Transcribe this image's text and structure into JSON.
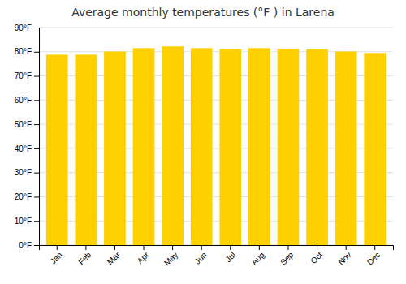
{
  "chart_data": {
    "type": "bar",
    "title": "Average monthly temperatures (°F ) in Larena",
    "categories": [
      "Jan",
      "Feb",
      "Mar",
      "Apr",
      "May",
      "Jun",
      "Jul",
      "Aug",
      "Sep",
      "Oct",
      "Nov",
      "Dec"
    ],
    "values": [
      78.8,
      78.8,
      80.1,
      81.5,
      82.2,
      81.5,
      81.1,
      81.5,
      81.3,
      81.0,
      80.1,
      79.5
    ],
    "color": "#FFD000",
    "ylim": [
      0,
      90
    ],
    "yticks": [
      {
        "value": 0,
        "label": "0°F"
      },
      {
        "value": 10,
        "label": "10°F"
      },
      {
        "value": 20,
        "label": "20°F"
      },
      {
        "value": 30,
        "label": "30°F"
      },
      {
        "value": 40,
        "label": "40°F"
      },
      {
        "value": 50,
        "label": "50°F"
      },
      {
        "value": 60,
        "label": "60°F"
      },
      {
        "value": 70,
        "label": "70°F"
      },
      {
        "value": 80,
        "label": "80°F"
      },
      {
        "value": 90,
        "label": "90°F"
      }
    ],
    "grid": true
  }
}
